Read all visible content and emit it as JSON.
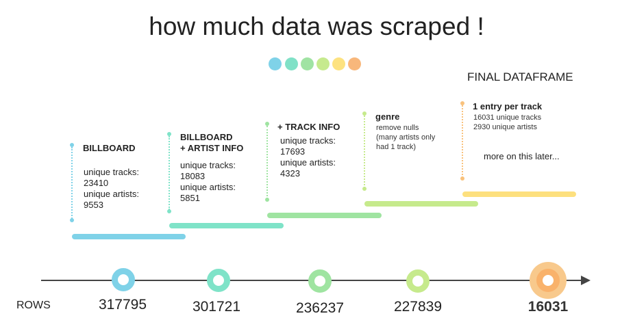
{
  "title": "how much data was scraped !",
  "palette": [
    "#7fd2e8",
    "#80e1c7",
    "#a0e3a3",
    "#c6ea8e",
    "#fde280",
    "#f8b77b"
  ],
  "final_heading": "FINAL DATAFRAME",
  "rows_label": "ROWS",
  "stages": [
    {
      "heading": "BILLBOARD",
      "details": "unique tracks:\n23410\nunique artists:\n9553",
      "rows": "317795",
      "color": "#7fd2e8"
    },
    {
      "heading": "BILLBOARD\n+ ARTIST INFO",
      "details": "unique tracks:\n18083\nunique artists:\n5851",
      "rows": "301721",
      "color": "#7fe3c8"
    },
    {
      "heading": "+ TRACK INFO",
      "details": "unique tracks:\n17693\nunique artists:\n4323",
      "rows": "236237",
      "color": "#9fe4a1"
    },
    {
      "heading": "genre",
      "details": "remove nulls\n(many artists only\nhad 1 track)",
      "rows": "227839",
      "color": "#c6ea8c"
    },
    {
      "heading": "1 entry per track",
      "details": "16031 unique tracks\n2930 unique artists",
      "note": "more on this later...",
      "rows": "16031",
      "color": "#fde07e",
      "ring_color": "#f9b26b"
    }
  ]
}
